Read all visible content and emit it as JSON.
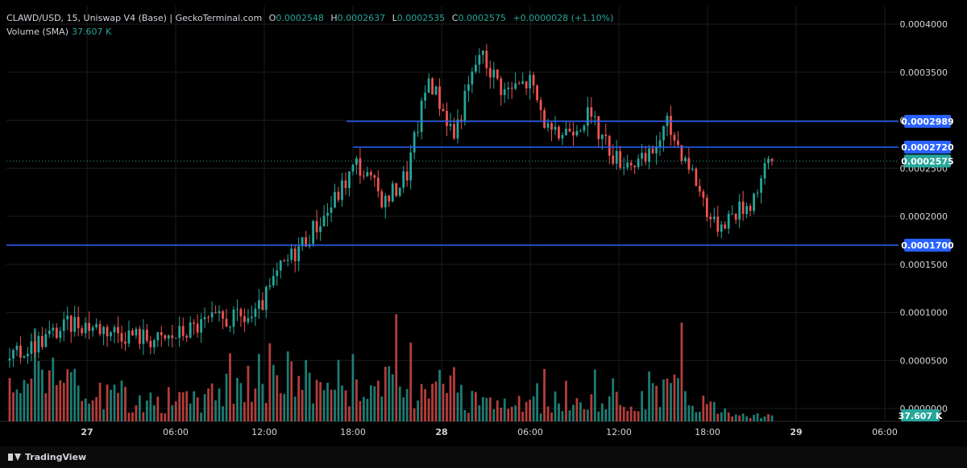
{
  "header": {
    "symbol": "CLAWD/USD, 15, Uniswap V4 (Base) | GeckoTerminal.com",
    "o_label": "O",
    "o_value": "0.0002548",
    "h_label": "H",
    "h_value": "0.0002637",
    "l_label": "L",
    "l_value": "0.0002535",
    "c_label": "C",
    "c_value": "0.0002575",
    "change": "+0.0000028 (+1.10%)",
    "volume_label": "Volume (SMA)",
    "volume_value": "37.607 K"
  },
  "footer": {
    "brand": "TradingView"
  },
  "colors": {
    "up": "#26a69a",
    "down": "#ef5350",
    "line": "#2962ff",
    "grid": "#1c1c1c"
  },
  "chart_data": {
    "type": "candlestick",
    "title": "CLAWD/USD, 15, Uniswap V4 (Base) | GeckoTerminal.com",
    "y_ticks": [
      "0.0004000",
      "0.0003500",
      "0.0003000",
      "0.0002500",
      "0.0002000",
      "0.0001500",
      "0.0001000",
      "0.0000500",
      "0.0000000"
    ],
    "y_tick_values": [
      0.0004,
      0.00035,
      0.0003,
      0.00025,
      0.0002,
      0.00015,
      0.0001,
      5e-05,
      0
    ],
    "ylim": [
      0,
      0.0004
    ],
    "x_ticks": [
      "27",
      "06:00",
      "12:00",
      "18:00",
      "28",
      "06:00",
      "12:00",
      "18:00",
      "29",
      "06:00"
    ],
    "horizontal_lines": [
      {
        "value": 0.0002989,
        "label": "0.0002989"
      },
      {
        "value": 0.000272,
        "label": "0.0002720"
      },
      {
        "value": 0.00017,
        "label": "0.0001700"
      }
    ],
    "last_price": {
      "value": 0.0002575,
      "label": "0.0002575"
    },
    "volume_label": "37.607 K",
    "anchors": [
      {
        "i": 0,
        "p": 5e-05
      },
      {
        "i": 8,
        "p": 7e-05
      },
      {
        "i": 18,
        "p": 9e-05
      },
      {
        "i": 30,
        "p": 8e-05
      },
      {
        "i": 42,
        "p": 7e-05
      },
      {
        "i": 55,
        "p": 9e-05
      },
      {
        "i": 68,
        "p": 9.5e-05
      },
      {
        "i": 75,
        "p": 0.000145
      },
      {
        "i": 88,
        "p": 0.000205
      },
      {
        "i": 96,
        "p": 0.000255
      },
      {
        "i": 104,
        "p": 0.000215
      },
      {
        "i": 110,
        "p": 0.000245
      },
      {
        "i": 116,
        "p": 0.000345
      },
      {
        "i": 123,
        "p": 0.000285
      },
      {
        "i": 130,
        "p": 0.00037
      },
      {
        "i": 137,
        "p": 0.00033
      },
      {
        "i": 144,
        "p": 0.00034
      },
      {
        "i": 150,
        "p": 0.00028
      },
      {
        "i": 160,
        "p": 0.000305
      },
      {
        "i": 168,
        "p": 0.00026
      },
      {
        "i": 176,
        "p": 0.000255
      },
      {
        "i": 182,
        "p": 0.000295
      },
      {
        "i": 188,
        "p": 0.000255
      },
      {
        "i": 195,
        "p": 0.00019
      },
      {
        "i": 205,
        "p": 0.000215
      },
      {
        "i": 210,
        "p": 0.000255
      }
    ],
    "volume_profile": [
      {
        "i": 0,
        "v": 3e-05
      },
      {
        "i": 8,
        "v": 7e-05
      },
      {
        "i": 20,
        "v": 3e-05
      },
      {
        "i": 50,
        "v": 2e-05
      },
      {
        "i": 66,
        "v": 4e-05
      },
      {
        "i": 75,
        "v": 5e-05
      },
      {
        "i": 85,
        "v": 4e-05
      },
      {
        "i": 95,
        "v": 4.5e-05
      },
      {
        "i": 112,
        "v": 3e-05
      },
      {
        "i": 118,
        "v": 6e-05
      },
      {
        "i": 128,
        "v": 2e-05
      },
      {
        "i": 150,
        "v": 1.5e-05
      },
      {
        "i": 170,
        "v": 2e-05
      },
      {
        "i": 180,
        "v": 4e-05
      },
      {
        "i": 195,
        "v": 1.5e-05
      },
      {
        "i": 211,
        "v": 5e-06
      }
    ],
    "candle_count": 212
  }
}
